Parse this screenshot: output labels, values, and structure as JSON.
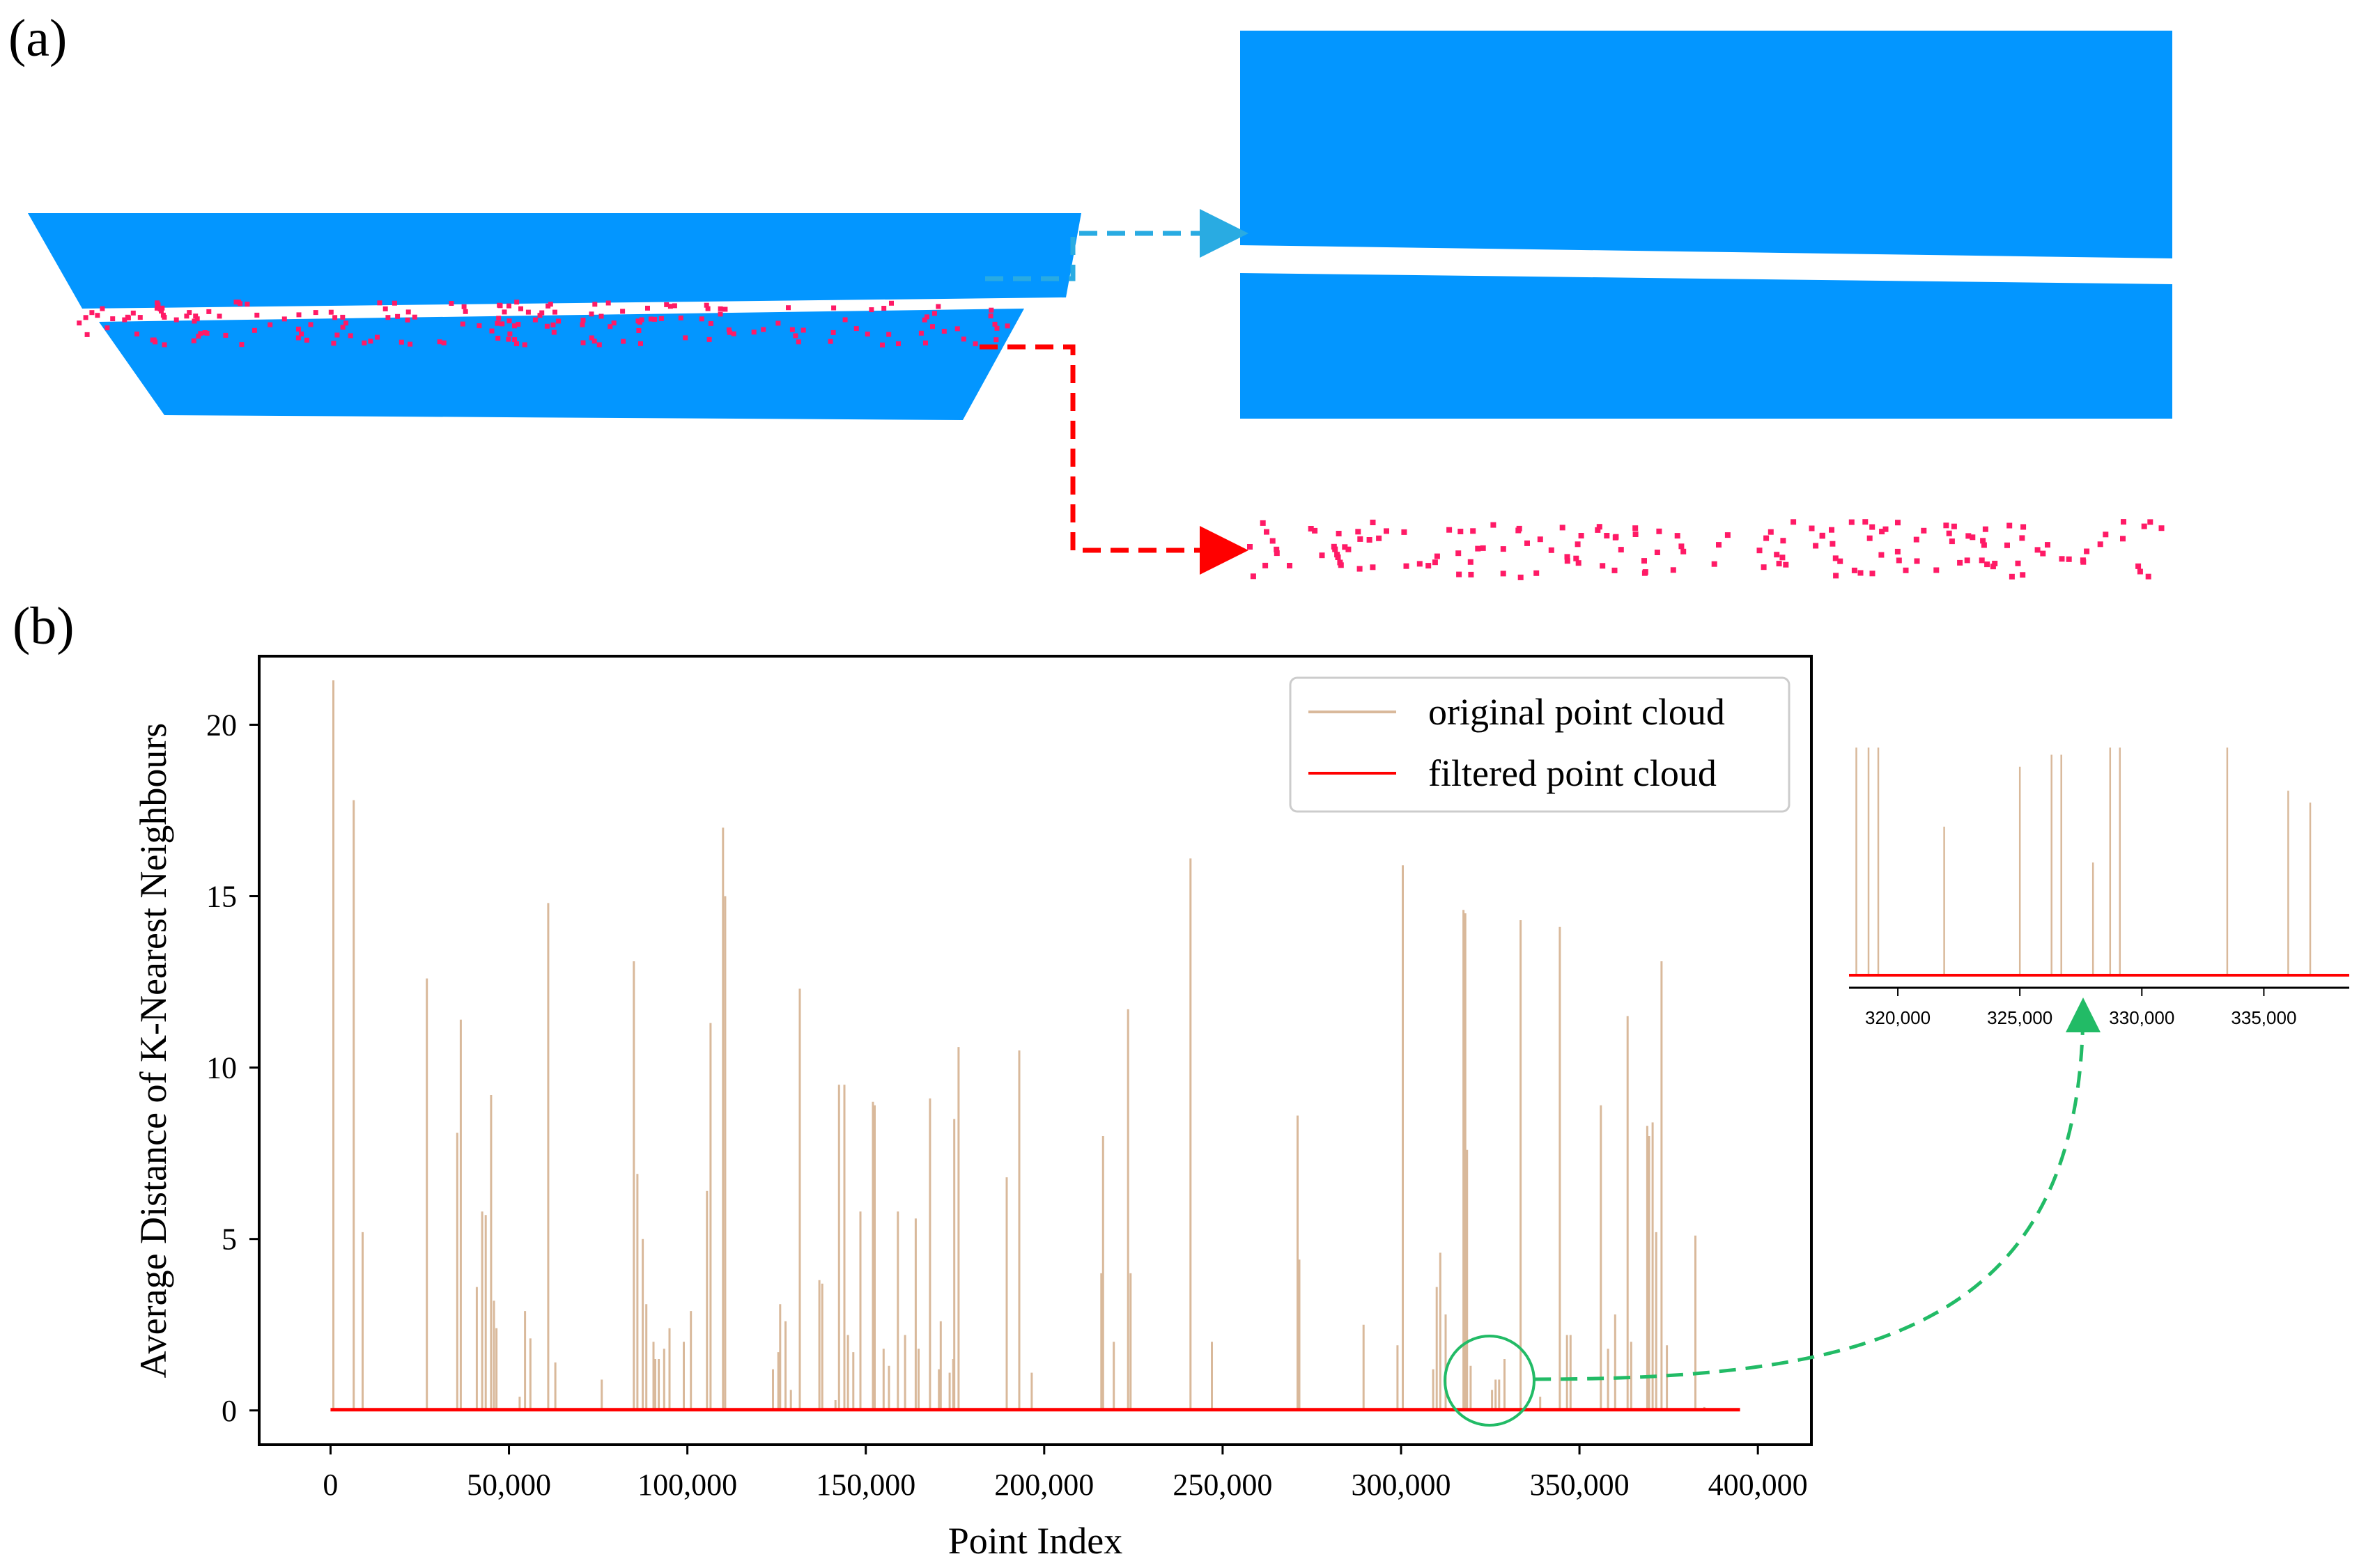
{
  "panel_a": {
    "label": "(a)",
    "colors": {
      "cloud": "#0396FF",
      "outlier": "#FF1A66",
      "arrow_cloud": "#29ABE2",
      "arrow_outlier": "#FF0000"
    },
    "outlier_count_left": 190,
    "outlier_count_right": 160
  },
  "panel_b": {
    "label": "(b)",
    "colors": {
      "original": "#D9B99B",
      "filtered": "#FF0000",
      "zoom_marker": "#22BB66"
    }
  },
  "chart_data": [
    {
      "type": "line",
      "title": "",
      "xlabel": "Point Index",
      "ylabel": "Average Distance of K-Nearest Neighbours",
      "xlim": [
        -20000,
        415000
      ],
      "ylim": [
        -1,
        22
      ],
      "xticks": [
        0,
        50000,
        100000,
        150000,
        200000,
        250000,
        300000,
        350000,
        400000
      ],
      "xtick_labels": [
        "0",
        "50,000",
        "100,000",
        "150,000",
        "200,000",
        "250,000",
        "300,000",
        "350,000",
        "400,000"
      ],
      "yticks": [
        0,
        5,
        10,
        15,
        20
      ],
      "ytick_labels": [
        "0",
        "5",
        "10",
        "15",
        "20"
      ],
      "legend": {
        "placement": "top-right",
        "entries": [
          "original point cloud",
          "filtered point cloud"
        ]
      },
      "filtered_level": 0.02,
      "x_max_index": 395000,
      "series": [
        {
          "name": "original point cloud",
          "spikes": [
            [
              800,
              21.3
            ],
            [
              6500,
              17.8
            ],
            [
              9000,
              5.2
            ],
            [
              27000,
              12.6
            ],
            [
              35500,
              8.1
            ],
            [
              36500,
              11.4
            ],
            [
              41000,
              3.6
            ],
            [
              42500,
              5.8
            ],
            [
              43500,
              5.7
            ],
            [
              45000,
              9.2
            ],
            [
              45800,
              3.2
            ],
            [
              46500,
              2.4
            ],
            [
              53000,
              0.4
            ],
            [
              54500,
              2.9
            ],
            [
              56000,
              2.1
            ],
            [
              61000,
              14.8
            ],
            [
              63000,
              1.4
            ],
            [
              76000,
              0.9
            ],
            [
              85000,
              13.1
            ],
            [
              86000,
              6.9
            ],
            [
              87500,
              5.0
            ],
            [
              88500,
              3.1
            ],
            [
              90500,
              2.0
            ],
            [
              91000,
              1.5
            ],
            [
              92000,
              1.5
            ],
            [
              93500,
              1.8
            ],
            [
              95000,
              2.4
            ],
            [
              99000,
              2.0
            ],
            [
              101000,
              2.9
            ],
            [
              105500,
              6.4
            ],
            [
              106500,
              11.3
            ],
            [
              110000,
              17.0
            ],
            [
              110600,
              15.0
            ],
            [
              124000,
              1.2
            ],
            [
              125500,
              1.7
            ],
            [
              126000,
              3.1
            ],
            [
              127500,
              2.6
            ],
            [
              129000,
              0.6
            ],
            [
              131500,
              12.3
            ],
            [
              137000,
              3.8
            ],
            [
              137800,
              3.7
            ],
            [
              141500,
              0.3
            ],
            [
              142500,
              9.5
            ],
            [
              144000,
              9.5
            ],
            [
              145000,
              2.2
            ],
            [
              146500,
              1.7
            ],
            [
              148500,
              5.8
            ],
            [
              152000,
              9.0
            ],
            [
              152500,
              8.9
            ],
            [
              155000,
              1.8
            ],
            [
              156500,
              1.3
            ],
            [
              159000,
              5.8
            ],
            [
              161000,
              2.2
            ],
            [
              164000,
              5.6
            ],
            [
              164800,
              1.8
            ],
            [
              168000,
              9.1
            ],
            [
              170500,
              1.2
            ],
            [
              171000,
              2.6
            ],
            [
              173500,
              1.1
            ],
            [
              174500,
              1.5
            ],
            [
              174800,
              8.5
            ],
            [
              176000,
              10.6
            ],
            [
              189500,
              6.8
            ],
            [
              193000,
              10.5
            ],
            [
              196500,
              1.1
            ],
            [
              216000,
              4.0
            ],
            [
              216500,
              8.0
            ],
            [
              219500,
              2.0
            ],
            [
              223500,
              11.7
            ],
            [
              224200,
              4.0
            ],
            [
              241000,
              16.1
            ],
            [
              247000,
              2.0
            ],
            [
              271000,
              8.6
            ],
            [
              271500,
              4.4
            ],
            [
              289500,
              2.5
            ],
            [
              299000,
              1.9
            ],
            [
              300500,
              15.9
            ],
            [
              309000,
              1.2
            ],
            [
              310000,
              3.6
            ],
            [
              311000,
              4.6
            ],
            [
              312500,
              2.8
            ],
            [
              317500,
              14.6
            ],
            [
              318000,
              14.5
            ],
            [
              318500,
              7.6
            ],
            [
              319500,
              1.3
            ],
            [
              325500,
              0.6
            ],
            [
              326500,
              0.9
            ],
            [
              327500,
              0.9
            ],
            [
              329000,
              1.5
            ],
            [
              333500,
              14.3
            ],
            [
              339000,
              0.4
            ],
            [
              344500,
              14.1
            ],
            [
              346500,
              2.2
            ],
            [
              347500,
              2.2
            ],
            [
              356000,
              8.9
            ],
            [
              358000,
              1.8
            ],
            [
              360000,
              2.8
            ],
            [
              363500,
              11.5
            ],
            [
              364500,
              2.0
            ],
            [
              369000,
              8.3
            ],
            [
              369500,
              8.0
            ],
            [
              370500,
              8.4
            ],
            [
              371500,
              5.2
            ],
            [
              373000,
              13.1
            ],
            [
              374500,
              1.9
            ],
            [
              382500,
              5.1
            ],
            [
              385000,
              0.1
            ]
          ]
        },
        {
          "name": "filtered point cloud",
          "values_constant": 0.02
        }
      ]
    },
    {
      "type": "line",
      "title": "",
      "xlabel": "",
      "ylabel": "",
      "xlim": [
        318000,
        338500
      ],
      "xticks": [
        320000,
        325000,
        330000,
        335000
      ],
      "xtick_labels": [
        "320,000",
        "325,000",
        "330,000",
        "335,000"
      ],
      "series": [
        {
          "name": "original point cloud",
          "spikes": [
            [
              318300,
              0.95
            ],
            [
              318800,
              0.95
            ],
            [
              319200,
              0.95
            ],
            [
              321900,
              0.62
            ],
            [
              325000,
              0.87
            ],
            [
              326300,
              0.92
            ],
            [
              326700,
              0.92
            ],
            [
              328000,
              0.47
            ],
            [
              328700,
              0.95
            ],
            [
              329100,
              0.95
            ],
            [
              333500,
              0.95
            ],
            [
              336000,
              0.77
            ],
            [
              336900,
              0.72
            ]
          ]
        },
        {
          "name": "filtered point cloud",
          "values_constant": 0.02
        }
      ]
    }
  ]
}
